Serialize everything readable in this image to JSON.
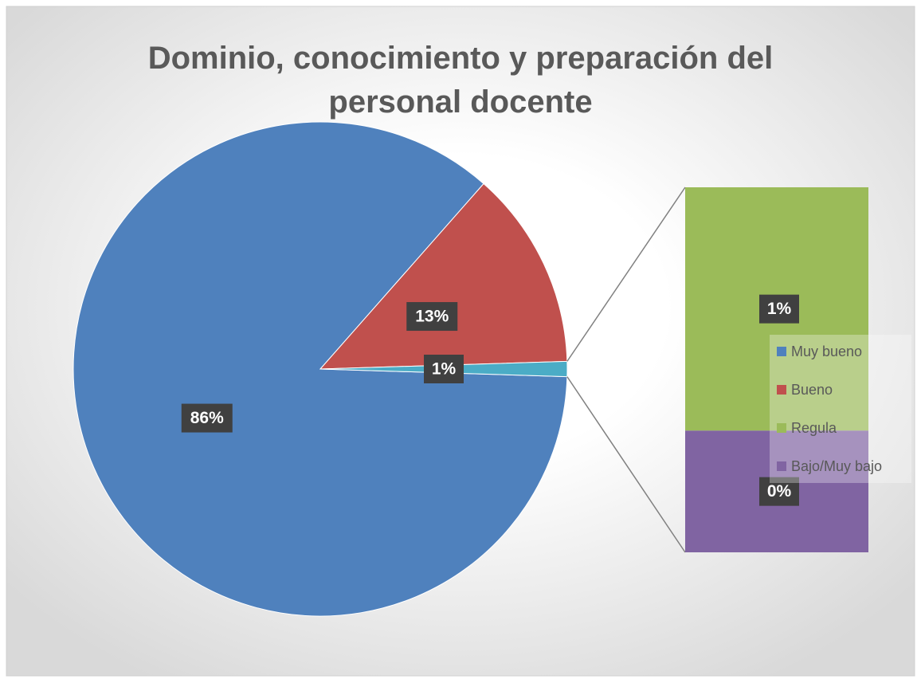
{
  "chart_data": {
    "type": "bar-of-pie",
    "title": "Dominio, conocimiento y preparación del personal docente",
    "categories": [
      "Muy bueno",
      "Bueno",
      "Regula",
      "Bajo/Muy bajo"
    ],
    "values": [
      86,
      13,
      0.66,
      0.33
    ],
    "value_labels": [
      "86%",
      "13%",
      "1%",
      "0%"
    ],
    "colors": [
      "#4f81bd",
      "#c0504d",
      "#9bbb59",
      "#8064a2"
    ],
    "second_plot_count": 2,
    "other_label": "1%",
    "other_color": "#4bacc6",
    "legend": "right"
  }
}
